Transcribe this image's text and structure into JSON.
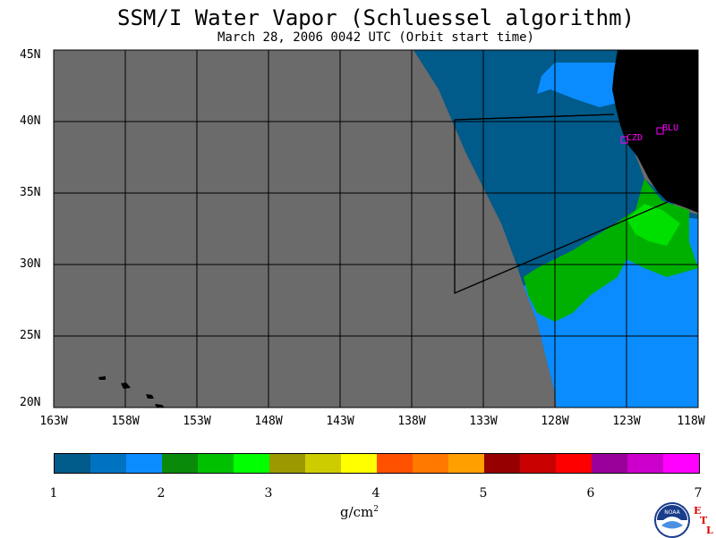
{
  "title": "SSM/I Water Vapor (Schluessel algorithm)",
  "subtitle": "March 28, 2006  0042 UTC  (Orbit start time)",
  "map": {
    "lat_labels": [
      "45N",
      "40N",
      "35N",
      "30N",
      "25N",
      "20N"
    ],
    "lon_labels": [
      "163W",
      "158W",
      "153W",
      "148W",
      "143W",
      "138W",
      "133W",
      "128W",
      "123W",
      "118W"
    ],
    "stations": [
      {
        "label": "CZD"
      },
      {
        "label": "BLU"
      }
    ],
    "colors": {
      "no_data": "#6b6b6b",
      "land": "#000000",
      "station": "#ff00ff",
      "grid": "#000000"
    }
  },
  "colorbar": {
    "colors": [
      "#005a8a",
      "#0073c0",
      "#0a8cff",
      "#0a8a0a",
      "#00c000",
      "#00ff00",
      "#9a9a00",
      "#cccc00",
      "#ffff00",
      "#ff5000",
      "#ff7800",
      "#ffa000",
      "#960000",
      "#c80000",
      "#ff0000",
      "#9a009a",
      "#cc00cc",
      "#ff00ff"
    ],
    "tick_labels": [
      "1",
      "2",
      "3",
      "4",
      "5",
      "6",
      "7"
    ],
    "units": "g/cm",
    "units_exponent": "2"
  },
  "logo": {
    "text": "NOAA",
    "credit_letters": [
      "E",
      "T",
      "L"
    ]
  }
}
